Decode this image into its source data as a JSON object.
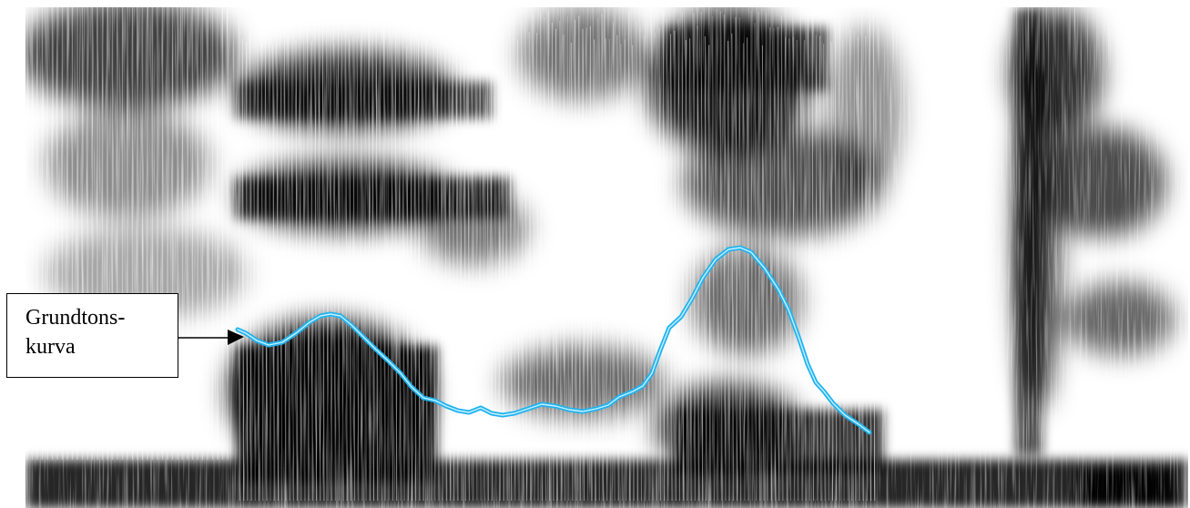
{
  "annotation": {
    "label_line1": "Grundtons-",
    "label_line2": "kurva"
  },
  "colors": {
    "pitch_curve": "#1fb4f0",
    "pitch_curve_core": "#cfefff",
    "spectrogram_dark": "#000000",
    "spectrogram_light": "#ffffff",
    "arrow": "#000000"
  },
  "icons": {
    "arrow": "arrow-right-icon"
  }
}
